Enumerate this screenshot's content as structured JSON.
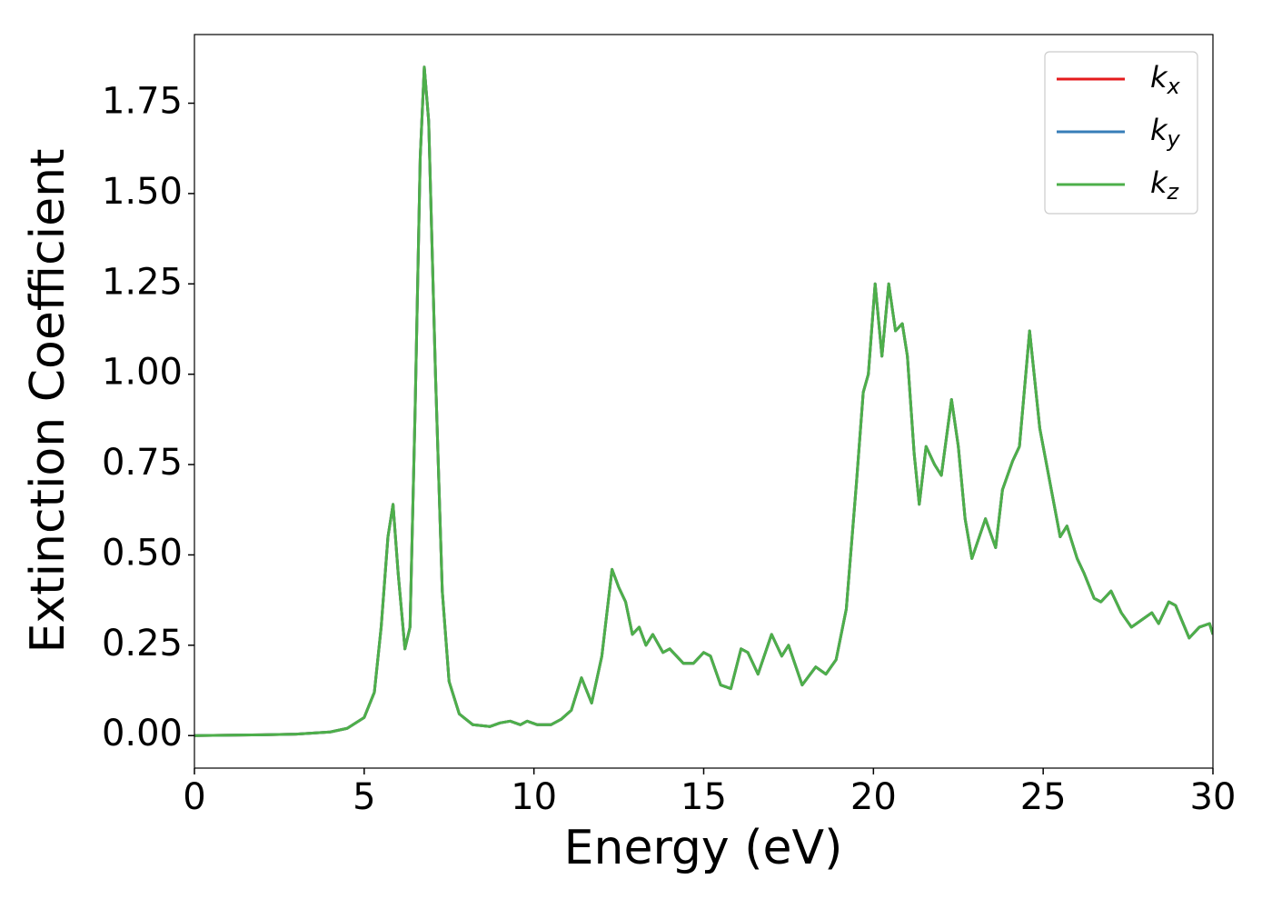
{
  "chart_data": {
    "type": "line",
    "xlabel": "Energy (eV)",
    "ylabel": "Extinction Coefficient",
    "x": [
      0,
      2,
      3,
      4,
      4.5,
      5,
      5.3,
      5.5,
      5.7,
      5.85,
      6.0,
      6.2,
      6.35,
      6.5,
      6.65,
      6.77,
      6.9,
      7.1,
      7.3,
      7.5,
      7.8,
      8.2,
      8.7,
      9.0,
      9.3,
      9.6,
      9.8,
      10.1,
      10.5,
      10.8,
      11.1,
      11.4,
      11.7,
      12.0,
      12.3,
      12.5,
      12.7,
      12.9,
      13.1,
      13.3,
      13.5,
      13.8,
      14.0,
      14.4,
      14.7,
      15.0,
      15.2,
      15.5,
      15.8,
      16.1,
      16.3,
      16.6,
      17.0,
      17.3,
      17.5,
      17.9,
      18.3,
      18.6,
      18.9,
      19.2,
      19.5,
      19.7,
      19.85,
      20.05,
      20.25,
      20.45,
      20.65,
      20.85,
      21.0,
      21.2,
      21.35,
      21.55,
      21.8,
      22.0,
      22.3,
      22.5,
      22.7,
      22.9,
      23.3,
      23.6,
      23.8,
      24.1,
      24.3,
      24.6,
      24.9,
      25.2,
      25.5,
      25.7,
      26.0,
      26.2,
      26.5,
      26.7,
      27.0,
      27.3,
      27.6,
      27.9,
      28.2,
      28.4,
      28.7,
      28.9,
      29.3,
      29.6,
      29.9,
      30.0
    ],
    "series": [
      {
        "name": "kx",
        "color": "#e41a1c",
        "values": [
          0,
          0.002,
          0.004,
          0.01,
          0.02,
          0.05,
          0.12,
          0.3,
          0.55,
          0.64,
          0.45,
          0.24,
          0.3,
          0.9,
          1.6,
          1.85,
          1.7,
          1.0,
          0.4,
          0.15,
          0.06,
          0.03,
          0.025,
          0.035,
          0.04,
          0.03,
          0.04,
          0.03,
          0.03,
          0.045,
          0.07,
          0.16,
          0.09,
          0.22,
          0.46,
          0.41,
          0.37,
          0.28,
          0.3,
          0.25,
          0.28,
          0.23,
          0.24,
          0.2,
          0.2,
          0.23,
          0.22,
          0.14,
          0.13,
          0.24,
          0.23,
          0.17,
          0.28,
          0.22,
          0.25,
          0.14,
          0.19,
          0.17,
          0.21,
          0.35,
          0.7,
          0.95,
          1.0,
          1.25,
          1.05,
          1.25,
          1.12,
          1.14,
          1.05,
          0.78,
          0.64,
          0.8,
          0.75,
          0.72,
          0.93,
          0.8,
          0.6,
          0.49,
          0.6,
          0.52,
          0.68,
          0.76,
          0.8,
          1.12,
          0.85,
          0.7,
          0.55,
          0.58,
          0.49,
          0.45,
          0.38,
          0.37,
          0.4,
          0.34,
          0.3,
          0.32,
          0.34,
          0.31,
          0.37,
          0.36,
          0.27,
          0.3,
          0.31,
          0.28
        ]
      },
      {
        "name": "ky",
        "color": "#377eb8",
        "values": [
          0,
          0.002,
          0.004,
          0.01,
          0.02,
          0.05,
          0.12,
          0.3,
          0.55,
          0.64,
          0.45,
          0.24,
          0.3,
          0.9,
          1.6,
          1.85,
          1.7,
          1.0,
          0.4,
          0.15,
          0.06,
          0.03,
          0.025,
          0.035,
          0.04,
          0.03,
          0.04,
          0.03,
          0.03,
          0.045,
          0.07,
          0.16,
          0.09,
          0.22,
          0.46,
          0.41,
          0.37,
          0.28,
          0.3,
          0.25,
          0.28,
          0.23,
          0.24,
          0.2,
          0.2,
          0.23,
          0.22,
          0.14,
          0.13,
          0.24,
          0.23,
          0.17,
          0.28,
          0.22,
          0.25,
          0.14,
          0.19,
          0.17,
          0.21,
          0.35,
          0.7,
          0.95,
          1.0,
          1.25,
          1.05,
          1.25,
          1.12,
          1.14,
          1.05,
          0.78,
          0.64,
          0.8,
          0.75,
          0.72,
          0.93,
          0.8,
          0.6,
          0.49,
          0.6,
          0.52,
          0.68,
          0.76,
          0.8,
          1.12,
          0.85,
          0.7,
          0.55,
          0.58,
          0.49,
          0.45,
          0.38,
          0.37,
          0.4,
          0.34,
          0.3,
          0.32,
          0.34,
          0.31,
          0.37,
          0.36,
          0.27,
          0.3,
          0.31,
          0.28
        ]
      },
      {
        "name": "kz",
        "color": "#4daf4a",
        "values": [
          0,
          0.002,
          0.004,
          0.01,
          0.02,
          0.05,
          0.12,
          0.3,
          0.55,
          0.64,
          0.45,
          0.24,
          0.3,
          0.9,
          1.6,
          1.85,
          1.7,
          1.0,
          0.4,
          0.15,
          0.06,
          0.03,
          0.025,
          0.035,
          0.04,
          0.03,
          0.04,
          0.03,
          0.03,
          0.045,
          0.07,
          0.16,
          0.09,
          0.22,
          0.46,
          0.41,
          0.37,
          0.28,
          0.3,
          0.25,
          0.28,
          0.23,
          0.24,
          0.2,
          0.2,
          0.23,
          0.22,
          0.14,
          0.13,
          0.24,
          0.23,
          0.17,
          0.28,
          0.22,
          0.25,
          0.14,
          0.19,
          0.17,
          0.21,
          0.35,
          0.7,
          0.95,
          1.0,
          1.25,
          1.05,
          1.25,
          1.12,
          1.14,
          1.05,
          0.78,
          0.64,
          0.8,
          0.75,
          0.72,
          0.93,
          0.8,
          0.6,
          0.49,
          0.6,
          0.52,
          0.68,
          0.76,
          0.8,
          1.12,
          0.85,
          0.7,
          0.55,
          0.58,
          0.49,
          0.45,
          0.38,
          0.37,
          0.4,
          0.34,
          0.3,
          0.32,
          0.34,
          0.31,
          0.37,
          0.36,
          0.27,
          0.3,
          0.31,
          0.28
        ]
      }
    ],
    "xlim": [
      0,
      30
    ],
    "xticks": [
      0,
      5,
      10,
      15,
      20,
      25,
      30
    ],
    "ylim": [
      -0.09,
      1.94
    ],
    "yticks": [
      {
        "value": 0,
        "label": "0.00"
      },
      0.25,
      {
        "value": 0.5,
        "label": "0.50"
      },
      0.75,
      {
        "value": 1,
        "label": "1.00"
      },
      1.25,
      {
        "value": 1.5,
        "label": "1.50"
      },
      1.75
    ],
    "grid": false,
    "legend": "upper right"
  }
}
